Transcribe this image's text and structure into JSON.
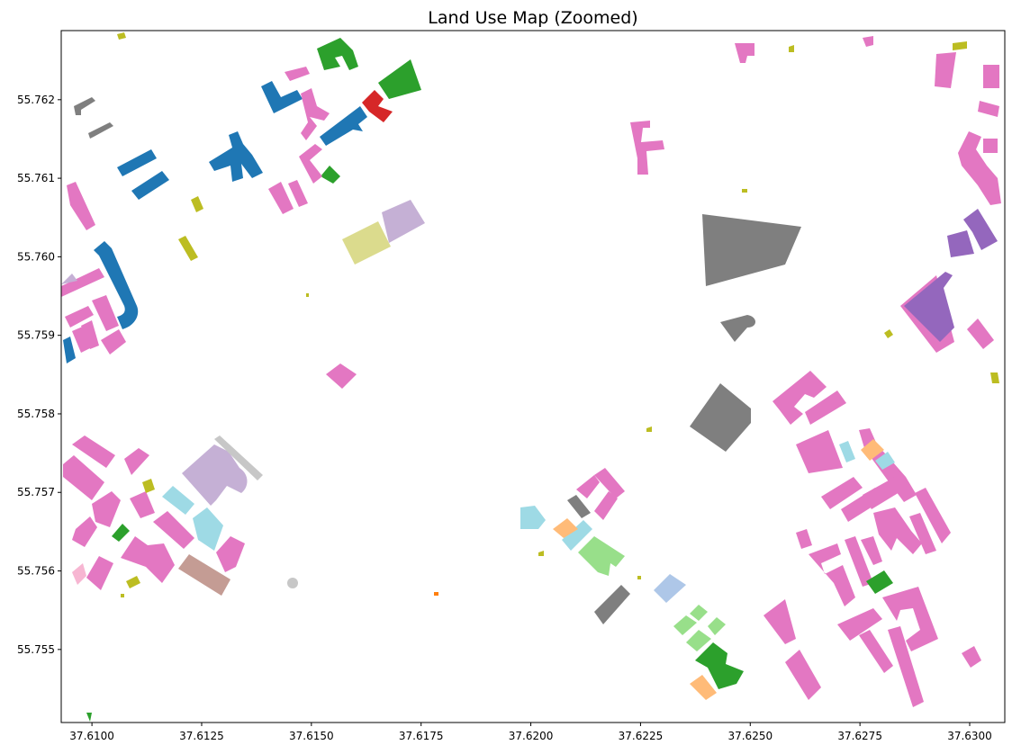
{
  "chart_data": {
    "type": "map",
    "title": "Land Use Map (Zoomed)",
    "xlabel": "",
    "ylabel": "",
    "xlim": [
      37.6093,
      37.6308
    ],
    "ylim": [
      55.75407,
      55.76288
    ],
    "x_ticks": [
      "37.6100",
      "37.6125",
      "37.6150",
      "37.6175",
      "37.6200",
      "37.6225",
      "37.6250",
      "37.6275",
      "37.6300"
    ],
    "y_ticks": [
      "55.755",
      "55.756",
      "55.757",
      "55.758",
      "55.759",
      "55.760",
      "55.761",
      "55.762"
    ],
    "grid": false,
    "legend": false,
    "palette": {
      "pink": "#e377c2",
      "blue": "#1f77b4",
      "green": "#2ca02c",
      "red": "#d62728",
      "gray": "#7f7f7f",
      "olive": "#bcbd22",
      "khaki": "#dbdb8d",
      "lavender": "#c5b0d5",
      "purple": "#9467bd",
      "cyan": "#9edae5",
      "peach": "#ffbb78",
      "lightgreen": "#98df8a",
      "lightblue": "#aec7e8",
      "brown": "#c49c94",
      "lightgray": "#c7c7c7",
      "lightpink": "#f7b6d2",
      "orange": "#ff7f0e"
    }
  }
}
